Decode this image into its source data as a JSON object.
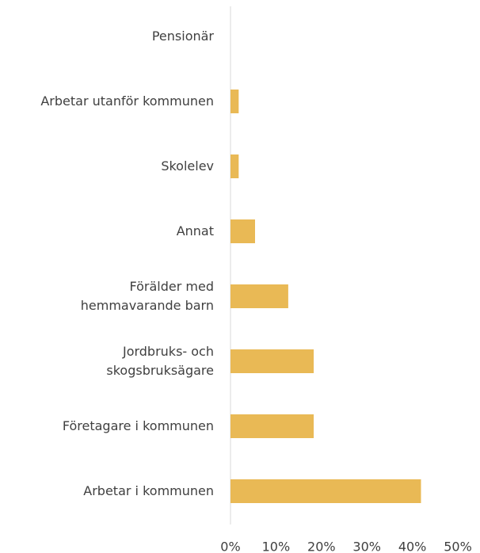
{
  "chart_data": {
    "type": "bar",
    "orientation": "horizontal",
    "categories": [
      "Pensionär",
      "Arbetar utanför kommunen",
      "Skolelev",
      "Annat",
      "Förälder med\nhemmavarande barn",
      "Jordbruks- och\nskogsbruksägare",
      "Företagare i kommunen",
      "Arbetar i kommunen"
    ],
    "values": [
      0,
      1.8,
      1.8,
      5.4,
      12.7,
      18.3,
      18.3,
      41.9
    ],
    "color": "#e9b955",
    "xlim": [
      0,
      50
    ],
    "xticks": [
      {
        "value": 0,
        "label": "0%"
      },
      {
        "value": 10,
        "label": "10%"
      },
      {
        "value": 20,
        "label": "20%"
      },
      {
        "value": 30,
        "label": "30%"
      },
      {
        "value": 40,
        "label": "40%"
      },
      {
        "value": 50,
        "label": "50%"
      }
    ],
    "grid": false
  }
}
